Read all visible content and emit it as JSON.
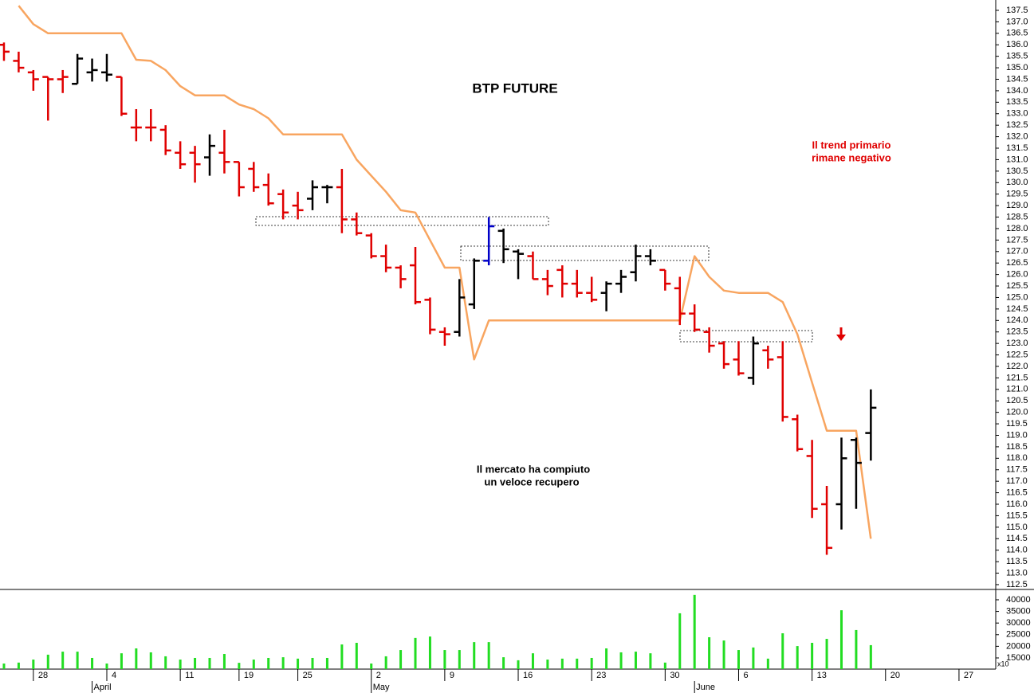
{
  "chart_data": [
    {
      "type": "ohlc",
      "title": "BTP FUTURE",
      "annotations": [
        {
          "lines": [
            "Il mercato ha compiuto",
            "un veloce recupero"
          ]
        },
        {
          "lines": [
            "Il trend primario",
            "rimane negativo"
          ]
        }
      ],
      "categories": [
        null,
        null,
        null,
        null,
        null,
        null,
        null,
        null,
        null,
        null,
        null,
        null,
        null,
        null,
        null,
        null,
        null,
        null,
        null,
        null,
        null,
        null,
        null,
        null,
        null,
        null,
        null,
        null,
        null,
        null,
        null,
        null,
        null,
        null,
        null,
        null,
        null,
        null,
        null,
        null,
        null,
        null,
        null,
        null,
        null,
        null,
        null,
        null,
        null,
        null,
        null,
        null,
        null,
        null,
        null,
        null,
        null,
        null,
        null,
        null
      ],
      "open": [
        136.0,
        135.3,
        134.8,
        134.6,
        134.5,
        134.3,
        134.8,
        134.8,
        134.6,
        132.4,
        132.4,
        132.3,
        131.3,
        131.3,
        131.1,
        131.3,
        130.9,
        130.6,
        129.9,
        129.5,
        129.0,
        129.3,
        129.8,
        129.8,
        128.4,
        127.7,
        126.8,
        126.3,
        126.4,
        124.9,
        123.5,
        123.5,
        124.7,
        126.6,
        127.9,
        127.0,
        126.8,
        125.8,
        126.2,
        125.6,
        125.2,
        125.2,
        125.6,
        126.1,
        126.8,
        126.2,
        125.4,
        124.3,
        123.5,
        123.0,
        122.3,
        121.5,
        122.7,
        122.4,
        119.7,
        118.1,
        116.0,
        116.0,
        118.8,
        119.1
      ],
      "high": [
        136.1,
        135.7,
        134.9,
        134.6,
        134.9,
        135.6,
        135.4,
        135.6,
        134.6,
        133.2,
        133.2,
        132.5,
        131.8,
        131.6,
        132.1,
        132.3,
        130.9,
        130.9,
        130.4,
        129.7,
        129.6,
        130.1,
        129.9,
        130.6,
        128.7,
        127.8,
        127.3,
        126.4,
        127.2,
        125.0,
        123.7,
        125.8,
        126.7,
        128.5,
        128.0,
        127.1,
        127.0,
        126.2,
        126.4,
        126.2,
        125.9,
        125.7,
        126.2,
        127.3,
        127.1,
        126.2,
        125.9,
        124.7,
        123.7,
        123.1,
        123.1,
        123.3,
        122.9,
        123.1,
        119.9,
        118.8,
        116.8,
        118.9,
        118.9,
        121.0
      ],
      "low": [
        135.3,
        134.8,
        134.0,
        132.7,
        133.9,
        134.3,
        134.4,
        134.4,
        132.9,
        131.8,
        131.8,
        131.2,
        130.6,
        130.0,
        130.3,
        130.4,
        129.4,
        129.6,
        129.0,
        128.4,
        128.4,
        128.8,
        129.1,
        127.8,
        127.7,
        126.7,
        126.1,
        125.4,
        124.7,
        123.4,
        122.9,
        123.3,
        124.5,
        126.4,
        126.5,
        125.8,
        125.8,
        125.1,
        125.0,
        125.0,
        124.8,
        124.4,
        125.2,
        125.7,
        126.4,
        125.3,
        123.8,
        123.5,
        122.6,
        121.9,
        121.6,
        121.2,
        121.9,
        119.6,
        118.3,
        115.4,
        113.8,
        114.9,
        115.8,
        117.9
      ],
      "close": [
        135.7,
        135.0,
        134.5,
        134.5,
        134.6,
        135.4,
        134.9,
        134.7,
        133.0,
        132.4,
        132.4,
        131.4,
        130.8,
        130.8,
        131.6,
        130.9,
        129.8,
        129.8,
        129.1,
        128.7,
        128.8,
        129.8,
        129.8,
        128.4,
        127.8,
        126.8,
        126.3,
        125.8,
        124.8,
        123.6,
        123.4,
        125.0,
        126.6,
        128.1,
        127.1,
        126.9,
        125.8,
        125.5,
        125.6,
        125.2,
        124.9,
        125.6,
        125.9,
        126.8,
        126.6,
        125.6,
        124.3,
        123.6,
        122.9,
        122.1,
        121.7,
        123.0,
        122.3,
        119.8,
        118.4,
        115.8,
        114.1,
        118.0,
        117.8,
        120.2
      ],
      "bar_colors": [
        "#e00000",
        "#e00000",
        "#e00000",
        "#e00000",
        "#e00000",
        "#000000",
        "#000000",
        "#000000",
        "#e00000",
        "#e00000",
        "#e00000",
        "#e00000",
        "#e00000",
        "#e00000",
        "#000000",
        "#e00000",
        "#e00000",
        "#e00000",
        "#e00000",
        "#e00000",
        "#e00000",
        "#000000",
        "#000000",
        "#e00000",
        "#e00000",
        "#e00000",
        "#e00000",
        "#e00000",
        "#e00000",
        "#e00000",
        "#e00000",
        "#000000",
        "#000000",
        "#0000c8",
        "#000000",
        "#000000",
        "#e00000",
        "#e00000",
        "#e00000",
        "#e00000",
        "#e00000",
        "#000000",
        "#000000",
        "#000000",
        "#000000",
        "#e00000",
        "#e00000",
        "#e00000",
        "#e00000",
        "#e00000",
        "#e00000",
        "#000000",
        "#e00000",
        "#e00000",
        "#e00000",
        "#e00000",
        "#e00000",
        "#000000",
        "#000000",
        "#000000"
      ],
      "series": [
        {
          "color": "#f8a560",
          "values": [
            null,
            137.7,
            136.9,
            136.5,
            136.5,
            136.5,
            136.5,
            136.5,
            136.5,
            135.35,
            135.3,
            134.9,
            134.2,
            133.8,
            133.8,
            133.8,
            133.4,
            133.2,
            132.8,
            132.1,
            132.1,
            132.1,
            132.1,
            132.1,
            131.0,
            130.3,
            129.6,
            128.8,
            128.7,
            127.5,
            126.3,
            126.3,
            122.3,
            124.0,
            124.0,
            124.0,
            124.0,
            124.0,
            124.0,
            124.0,
            124.0,
            124.0,
            124.0,
            124.0,
            124.0,
            124.0,
            124.0,
            126.8,
            125.9,
            125.3,
            125.2,
            125.2,
            125.2,
            124.8,
            123.4,
            121.3,
            119.2,
            119.2,
            119.2,
            114.5
          ]
        }
      ],
      "xlim": [
        -0.27,
        67.5
      ],
      "ylim": [
        112.29,
        137.95
      ],
      "yticks": [
        112.5,
        {
          "value": 113,
          "label": "113.0"
        },
        113.5,
        {
          "value": 114,
          "label": "114.0"
        },
        114.5,
        {
          "value": 115,
          "label": "115.0"
        },
        115.5,
        {
          "value": 116,
          "label": "116.0"
        },
        116.5,
        {
          "value": 117,
          "label": "117.0"
        },
        117.5,
        {
          "value": 118,
          "label": "118.0"
        },
        118.5,
        {
          "value": 119,
          "label": "119.0"
        },
        119.5,
        {
          "value": 120,
          "label": "120.0"
        },
        120.5,
        {
          "value": 121,
          "label": "121.0"
        },
        121.5,
        {
          "value": 122,
          "label": "122.0"
        },
        122.5,
        {
          "value": 123,
          "label": "123.0"
        },
        123.5,
        {
          "value": 124,
          "label": "124.0"
        },
        124.5,
        {
          "value": 125,
          "label": "125.0"
        },
        125.5,
        {
          "value": 126,
          "label": "126.0"
        },
        126.5,
        {
          "value": 127,
          "label": "127.0"
        },
        127.5,
        {
          "value": 128,
          "label": "128.0"
        },
        128.5,
        {
          "value": 129,
          "label": "129.0"
        },
        129.5,
        {
          "value": 130,
          "label": "130.0"
        },
        130.5,
        {
          "value": 131,
          "label": "131.0"
        },
        131.5,
        {
          "value": 132,
          "label": "132.0"
        },
        132.5,
        {
          "value": 133,
          "label": "133.0"
        },
        133.5,
        {
          "value": 134,
          "label": "134.0"
        },
        134.5,
        {
          "value": 135,
          "label": "135.0"
        },
        135.5,
        {
          "value": 136,
          "label": "136.0"
        },
        136.5,
        {
          "value": 137,
          "label": "137.0"
        },
        137.5
      ]
    },
    {
      "type": "bar",
      "categories": [
        null,
        null,
        null,
        null,
        null,
        null,
        null,
        null,
        null,
        null,
        null,
        null,
        null,
        null,
        null,
        null,
        null,
        null,
        null,
        null,
        null,
        null,
        null,
        null,
        null,
        null,
        null,
        null,
        null,
        null,
        null,
        null,
        null,
        null,
        null,
        null,
        null,
        null,
        null,
        null,
        null,
        null,
        null,
        null,
        null,
        null,
        null,
        null,
        null,
        null,
        null,
        null,
        null,
        null,
        null,
        null,
        null,
        null,
        null,
        null
      ],
      "values": [
        12600,
        13000,
        14300,
        16400,
        17700,
        17700,
        15000,
        12600,
        17000,
        19100,
        17400,
        15700,
        14300,
        15000,
        15000,
        16700,
        12900,
        14300,
        15000,
        15300,
        14700,
        15000,
        15000,
        20800,
        21500,
        12600,
        15700,
        18400,
        23600,
        24200,
        18400,
        18400,
        21800,
        21800,
        15300,
        14000,
        17000,
        14300,
        14700,
        14700,
        15000,
        19100,
        17400,
        17700,
        17000,
        13000,
        34200,
        42100,
        23900,
        22500,
        18400,
        19500,
        14700,
        25600,
        20100,
        21500,
        23200,
        35500,
        27000,
        20500
      ],
      "color": "#22dd22",
      "unit_label": "x10",
      "xlim": [
        -0.27,
        67.5
      ],
      "ylim": [
        10200,
        44100
      ],
      "yticks": [
        15000,
        20000,
        25000,
        30000,
        35000,
        40000
      ],
      "xticks": [
        {
          "value": 2,
          "label": "28"
        },
        {
          "value": 7,
          "label": "4"
        },
        {
          "value": 12,
          "label": "11"
        },
        {
          "value": 16,
          "label": "19"
        },
        {
          "value": 20,
          "label": "25"
        },
        {
          "value": 25,
          "label": "2"
        },
        {
          "value": 30,
          "label": "9"
        },
        {
          "value": 35,
          "label": "16"
        },
        {
          "value": 40,
          "label": "23"
        },
        {
          "value": 45,
          "label": "30"
        },
        {
          "value": 50,
          "label": "6"
        },
        {
          "value": 55,
          "label": "13"
        },
        {
          "value": 60,
          "label": "20"
        },
        {
          "value": 65,
          "label": "27"
        }
      ],
      "month_ticks": [
        {
          "value": 6,
          "label": "April"
        },
        {
          "value": 25,
          "label": "May"
        },
        {
          "value": 47,
          "label": "June"
        }
      ]
    }
  ]
}
